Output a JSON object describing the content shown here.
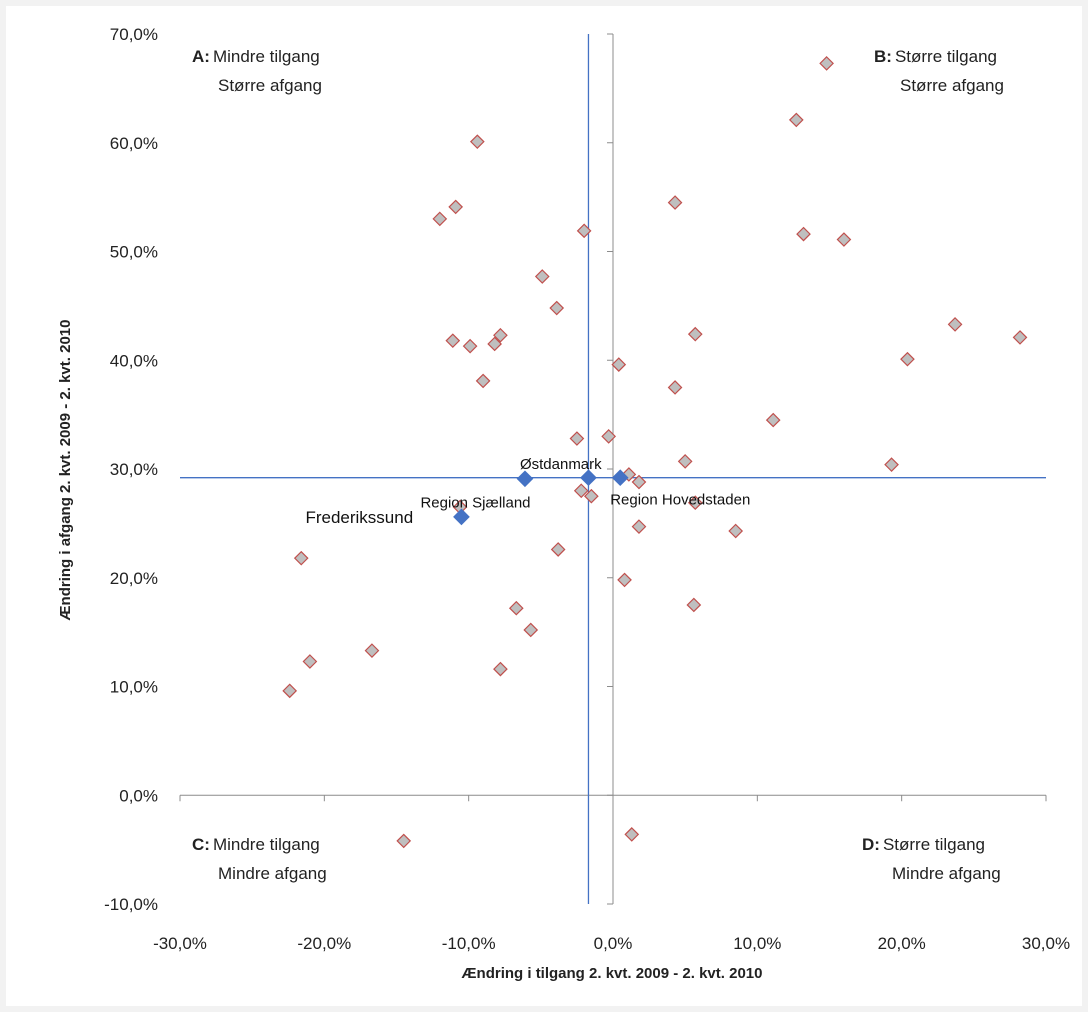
{
  "chart_data": {
    "type": "scatter",
    "title": "",
    "xlabel": "Ændring i tilgang 2. kvt. 2009 - 2. kvt. 2010",
    "ylabel": "Ændring i afgang 2. kvt. 2009 - 2. kvt. 2010",
    "xlim": [
      -30,
      30
    ],
    "ylim": [
      -10,
      70
    ],
    "x_ticks": [
      "-30,0%",
      "-20,0%",
      "-10,0%",
      "0,0%",
      "10,0%",
      "20,0%",
      "30,0%"
    ],
    "y_ticks": [
      "70,0%",
      "60,0%",
      "50,0%",
      "40,0%",
      "30,0%",
      "20,0%",
      "10,0%",
      "0,0%",
      "-10,0%"
    ],
    "x_tick_values": [
      -30,
      -20,
      -10,
      0,
      10,
      20,
      30
    ],
    "y_tick_values": [
      70,
      60,
      50,
      40,
      30,
      20,
      10,
      0,
      -10
    ],
    "reference_lines": {
      "x": -1.7,
      "y": 29.2,
      "color": "#4472c4"
    },
    "quadrants": {
      "A": {
        "key": "A:",
        "line1": "Mindre tilgang",
        "line2": "Større afgang"
      },
      "B": {
        "key": "B:",
        "line1": "Større tilgang",
        "line2": "Større afgang"
      },
      "C": {
        "key": "C:",
        "line1": "Mindre tilgang",
        "line2": "Mindre afgang"
      },
      "D": {
        "key": "D:",
        "line1": "Større tilgang",
        "line2": "Mindre afgang"
      }
    },
    "series": [
      {
        "marker_color": "#bfbfbf",
        "marker_edge": "#c0504d",
        "points": [
          [
            14.8,
            67.3
          ],
          [
            12.7,
            62.1
          ],
          [
            -9.4,
            60.1
          ],
          [
            4.3,
            54.5
          ],
          [
            -10.9,
            54.1
          ],
          [
            -12.0,
            53.0
          ],
          [
            -2.0,
            51.9
          ],
          [
            13.2,
            51.6
          ],
          [
            16.0,
            51.1
          ],
          [
            -4.9,
            47.7
          ],
          [
            -3.9,
            44.8
          ],
          [
            23.7,
            43.3
          ],
          [
            5.7,
            42.4
          ],
          [
            -7.8,
            42.3
          ],
          [
            28.2,
            42.1
          ],
          [
            -11.1,
            41.8
          ],
          [
            -8.2,
            41.5
          ],
          [
            -9.9,
            41.3
          ],
          [
            20.4,
            40.1
          ],
          [
            0.4,
            39.6
          ],
          [
            -9.0,
            38.1
          ],
          [
            4.3,
            37.5
          ],
          [
            11.1,
            34.5
          ],
          [
            -0.3,
            33.0
          ],
          [
            -2.5,
            32.8
          ],
          [
            5.0,
            30.7
          ],
          [
            19.3,
            30.4
          ],
          [
            1.1,
            29.5
          ],
          [
            1.8,
            28.8
          ],
          [
            -2.2,
            28.0
          ],
          [
            -1.5,
            27.5
          ],
          [
            5.7,
            26.9
          ],
          [
            -10.6,
            26.5
          ],
          [
            1.8,
            24.7
          ],
          [
            8.5,
            24.3
          ],
          [
            -3.8,
            22.6
          ],
          [
            -21.6,
            21.8
          ],
          [
            0.8,
            19.8
          ],
          [
            5.6,
            17.5
          ],
          [
            -6.7,
            17.2
          ],
          [
            -5.7,
            15.2
          ],
          [
            -16.7,
            13.3
          ],
          [
            -21.0,
            12.3
          ],
          [
            -7.8,
            11.6
          ],
          [
            -22.4,
            9.6
          ],
          [
            -14.5,
            -4.2
          ],
          [
            1.3,
            -3.6
          ]
        ]
      },
      {
        "marker_color": "#4472c4",
        "marker_edge": "#4472c4",
        "points": [
          {
            "x": -6.1,
            "y": 29.1,
            "label": "Østdanmark",
            "label_dx": -5,
            "label_dy": -10,
            "label_size": "small"
          },
          {
            "x": -1.7,
            "y": 29.2,
            "label": "Region Sjælland",
            "label_dx": -168,
            "label_dy": 30,
            "label_size": "small"
          },
          {
            "x": 0.5,
            "y": 29.2,
            "label": "Region Hovedstaden",
            "label_dx": -10,
            "label_dy": 27,
            "label_size": "small"
          },
          {
            "x": -10.5,
            "y": 25.6,
            "label": "Frederikssund",
            "label_dx": -156,
            "label_dy": 6,
            "label_size": "big"
          }
        ]
      }
    ]
  }
}
